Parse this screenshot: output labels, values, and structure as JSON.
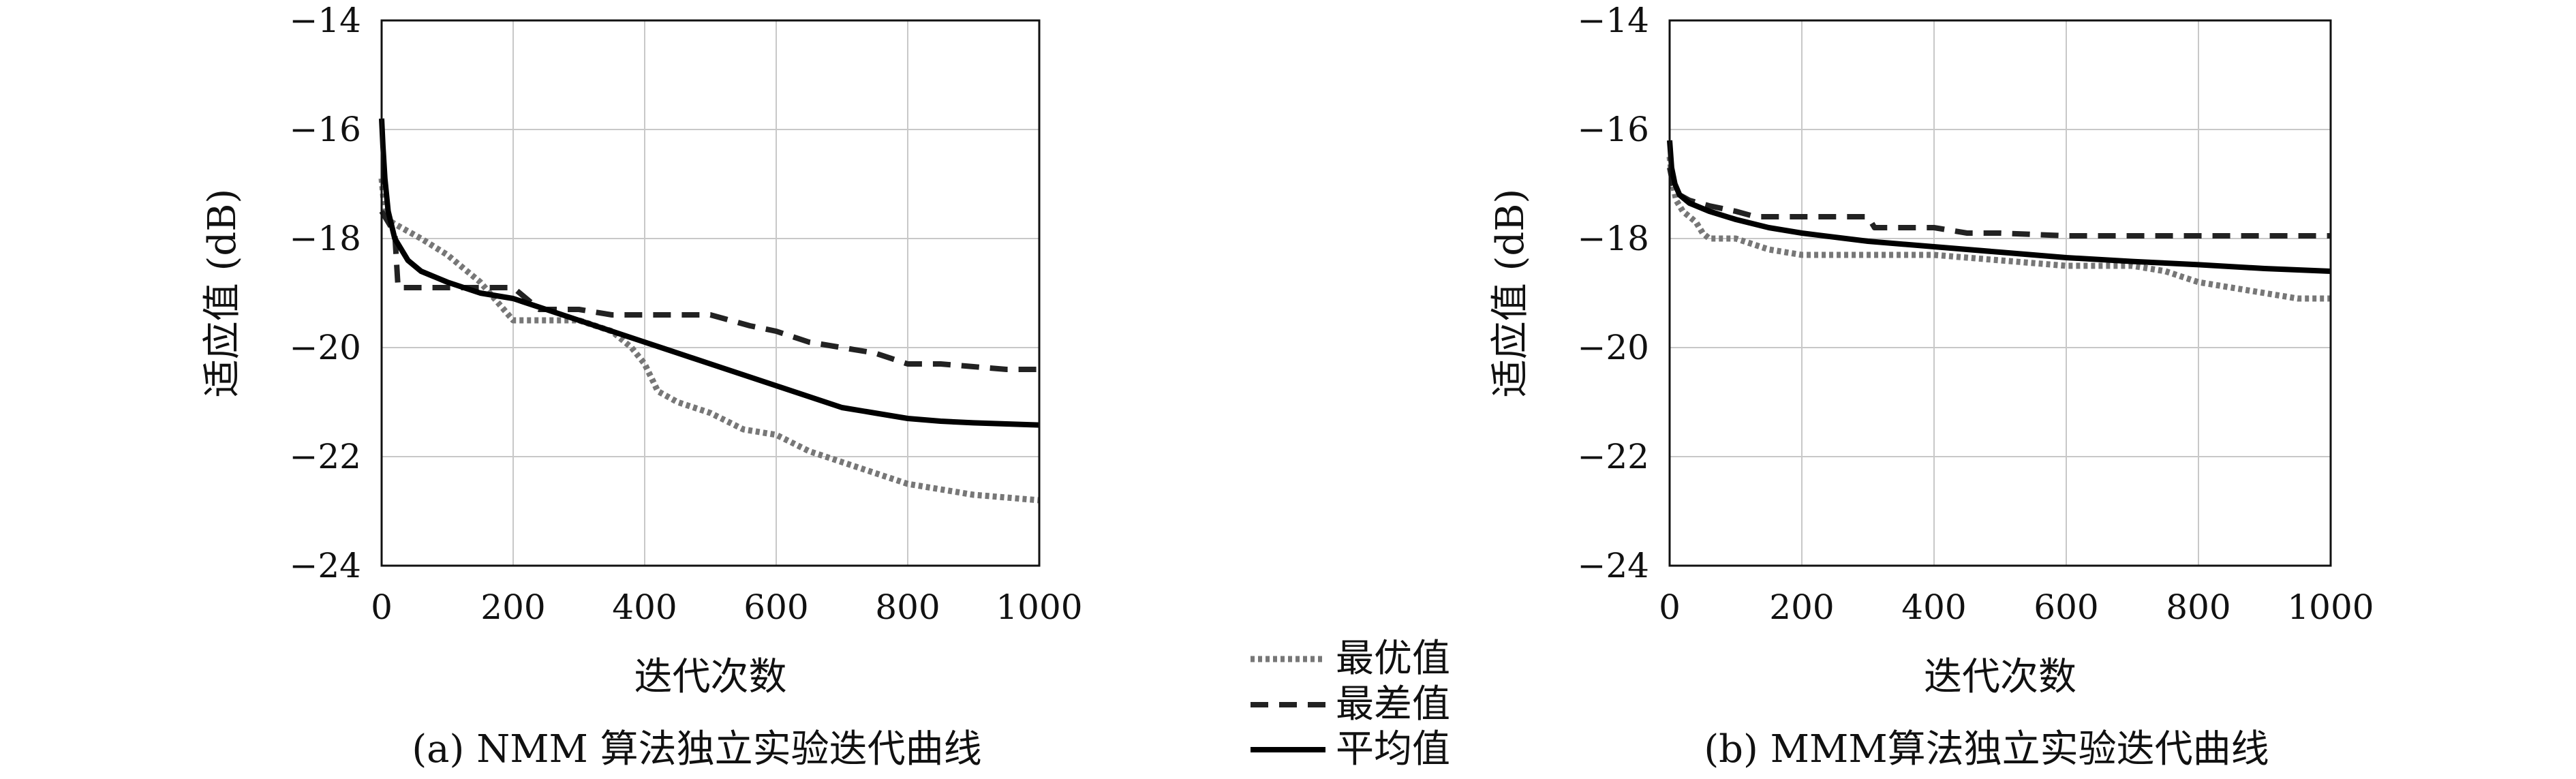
{
  "legend": [
    {
      "label": "最优值",
      "style": "dotted",
      "color": "#777777"
    },
    {
      "label": "最差值",
      "style": "dashed",
      "color": "#222222"
    },
    {
      "label": "平均值",
      "style": "solid",
      "color": "#000000"
    }
  ],
  "chart_data": [
    {
      "type": "line",
      "caption": "(a) NMM 算法独立实验迭代曲线",
      "xlabel": "迭代次数",
      "ylabel": "适应值 (dB)",
      "xlim": [
        0,
        1000
      ],
      "ylim": [
        -24,
        -14
      ],
      "xticks": [
        0,
        200,
        400,
        600,
        800,
        1000
      ],
      "yticks": [
        -14,
        -16,
        -18,
        -20,
        -22,
        -24
      ],
      "grid": true,
      "series": [
        {
          "name": "最优值",
          "style": "dotted",
          "x": [
            0,
            3,
            8,
            15,
            30,
            60,
            100,
            150,
            200,
            250,
            300,
            350,
            380,
            400,
            420,
            450,
            500,
            550,
            600,
            650,
            700,
            750,
            800,
            850,
            900,
            950,
            1000
          ],
          "y": [
            -16.9,
            -17.3,
            -17.6,
            -17.7,
            -17.8,
            -18.0,
            -18.3,
            -18.8,
            -19.5,
            -19.5,
            -19.5,
            -19.7,
            -20.0,
            -20.3,
            -20.8,
            -21.0,
            -21.2,
            -21.5,
            -21.6,
            -21.9,
            -22.1,
            -22.3,
            -22.5,
            -22.6,
            -22.7,
            -22.75,
            -22.8
          ]
        },
        {
          "name": "最差值",
          "style": "dashed",
          "x": [
            0,
            5,
            10,
            20,
            25,
            30,
            200,
            240,
            300,
            350,
            400,
            450,
            500,
            530,
            560,
            600,
            650,
            700,
            750,
            800,
            850,
            900,
            950,
            1000
          ],
          "y": [
            -17.5,
            -17.6,
            -17.7,
            -17.9,
            -18.9,
            -18.9,
            -18.9,
            -19.3,
            -19.3,
            -19.4,
            -19.4,
            -19.4,
            -19.4,
            -19.5,
            -19.6,
            -19.7,
            -19.9,
            -20.0,
            -20.1,
            -20.3,
            -20.3,
            -20.35,
            -20.4,
            -20.4
          ]
        },
        {
          "name": "平均值",
          "style": "solid",
          "x": [
            0,
            2,
            5,
            10,
            20,
            40,
            60,
            100,
            150,
            200,
            250,
            300,
            350,
            400,
            450,
            500,
            550,
            600,
            650,
            700,
            750,
            800,
            850,
            900,
            950,
            1000
          ],
          "y": [
            -15.8,
            -16.3,
            -16.9,
            -17.5,
            -18.0,
            -18.4,
            -18.6,
            -18.8,
            -19.0,
            -19.1,
            -19.3,
            -19.5,
            -19.7,
            -19.9,
            -20.1,
            -20.3,
            -20.5,
            -20.7,
            -20.9,
            -21.1,
            -21.2,
            -21.3,
            -21.35,
            -21.38,
            -21.4,
            -21.42
          ]
        }
      ]
    },
    {
      "type": "line",
      "caption": "(b) MMM算法独立实验迭代曲线",
      "xlabel": "迭代次数",
      "ylabel": "适应值 (dB)",
      "xlim": [
        0,
        1000
      ],
      "ylim": [
        -24,
        -14
      ],
      "xticks": [
        0,
        200,
        400,
        600,
        800,
        1000
      ],
      "yticks": [
        -14,
        -16,
        -18,
        -20,
        -22,
        -24
      ],
      "grid": true,
      "series": [
        {
          "name": "最优值",
          "style": "dotted",
          "x": [
            0,
            5,
            10,
            20,
            30,
            40,
            50,
            60,
            100,
            150,
            200,
            300,
            400,
            500,
            600,
            700,
            750,
            800,
            850,
            900,
            950,
            1000
          ],
          "y": [
            -16.5,
            -17.0,
            -17.3,
            -17.5,
            -17.6,
            -17.7,
            -17.9,
            -18.0,
            -18.0,
            -18.2,
            -18.3,
            -18.3,
            -18.3,
            -18.4,
            -18.5,
            -18.5,
            -18.6,
            -18.8,
            -18.9,
            -19.0,
            -19.1,
            -19.1
          ]
        },
        {
          "name": "最差值",
          "style": "dashed",
          "x": [
            0,
            5,
            15,
            30,
            60,
            100,
            130,
            150,
            200,
            300,
            310,
            400,
            450,
            500,
            600,
            700,
            800,
            900,
            1000
          ],
          "y": [
            -16.7,
            -17.0,
            -17.2,
            -17.3,
            -17.4,
            -17.5,
            -17.6,
            -17.6,
            -17.6,
            -17.6,
            -17.8,
            -17.8,
            -17.9,
            -17.9,
            -17.95,
            -17.95,
            -17.95,
            -17.95,
            -17.95
          ]
        },
        {
          "name": "平均值",
          "style": "solid",
          "x": [
            0,
            3,
            8,
            15,
            30,
            60,
            100,
            150,
            200,
            300,
            400,
            500,
            600,
            700,
            800,
            900,
            1000
          ],
          "y": [
            -16.2,
            -16.7,
            -17.0,
            -17.2,
            -17.35,
            -17.5,
            -17.65,
            -17.8,
            -17.9,
            -18.05,
            -18.15,
            -18.25,
            -18.35,
            -18.42,
            -18.48,
            -18.55,
            -18.6
          ]
        }
      ]
    }
  ]
}
